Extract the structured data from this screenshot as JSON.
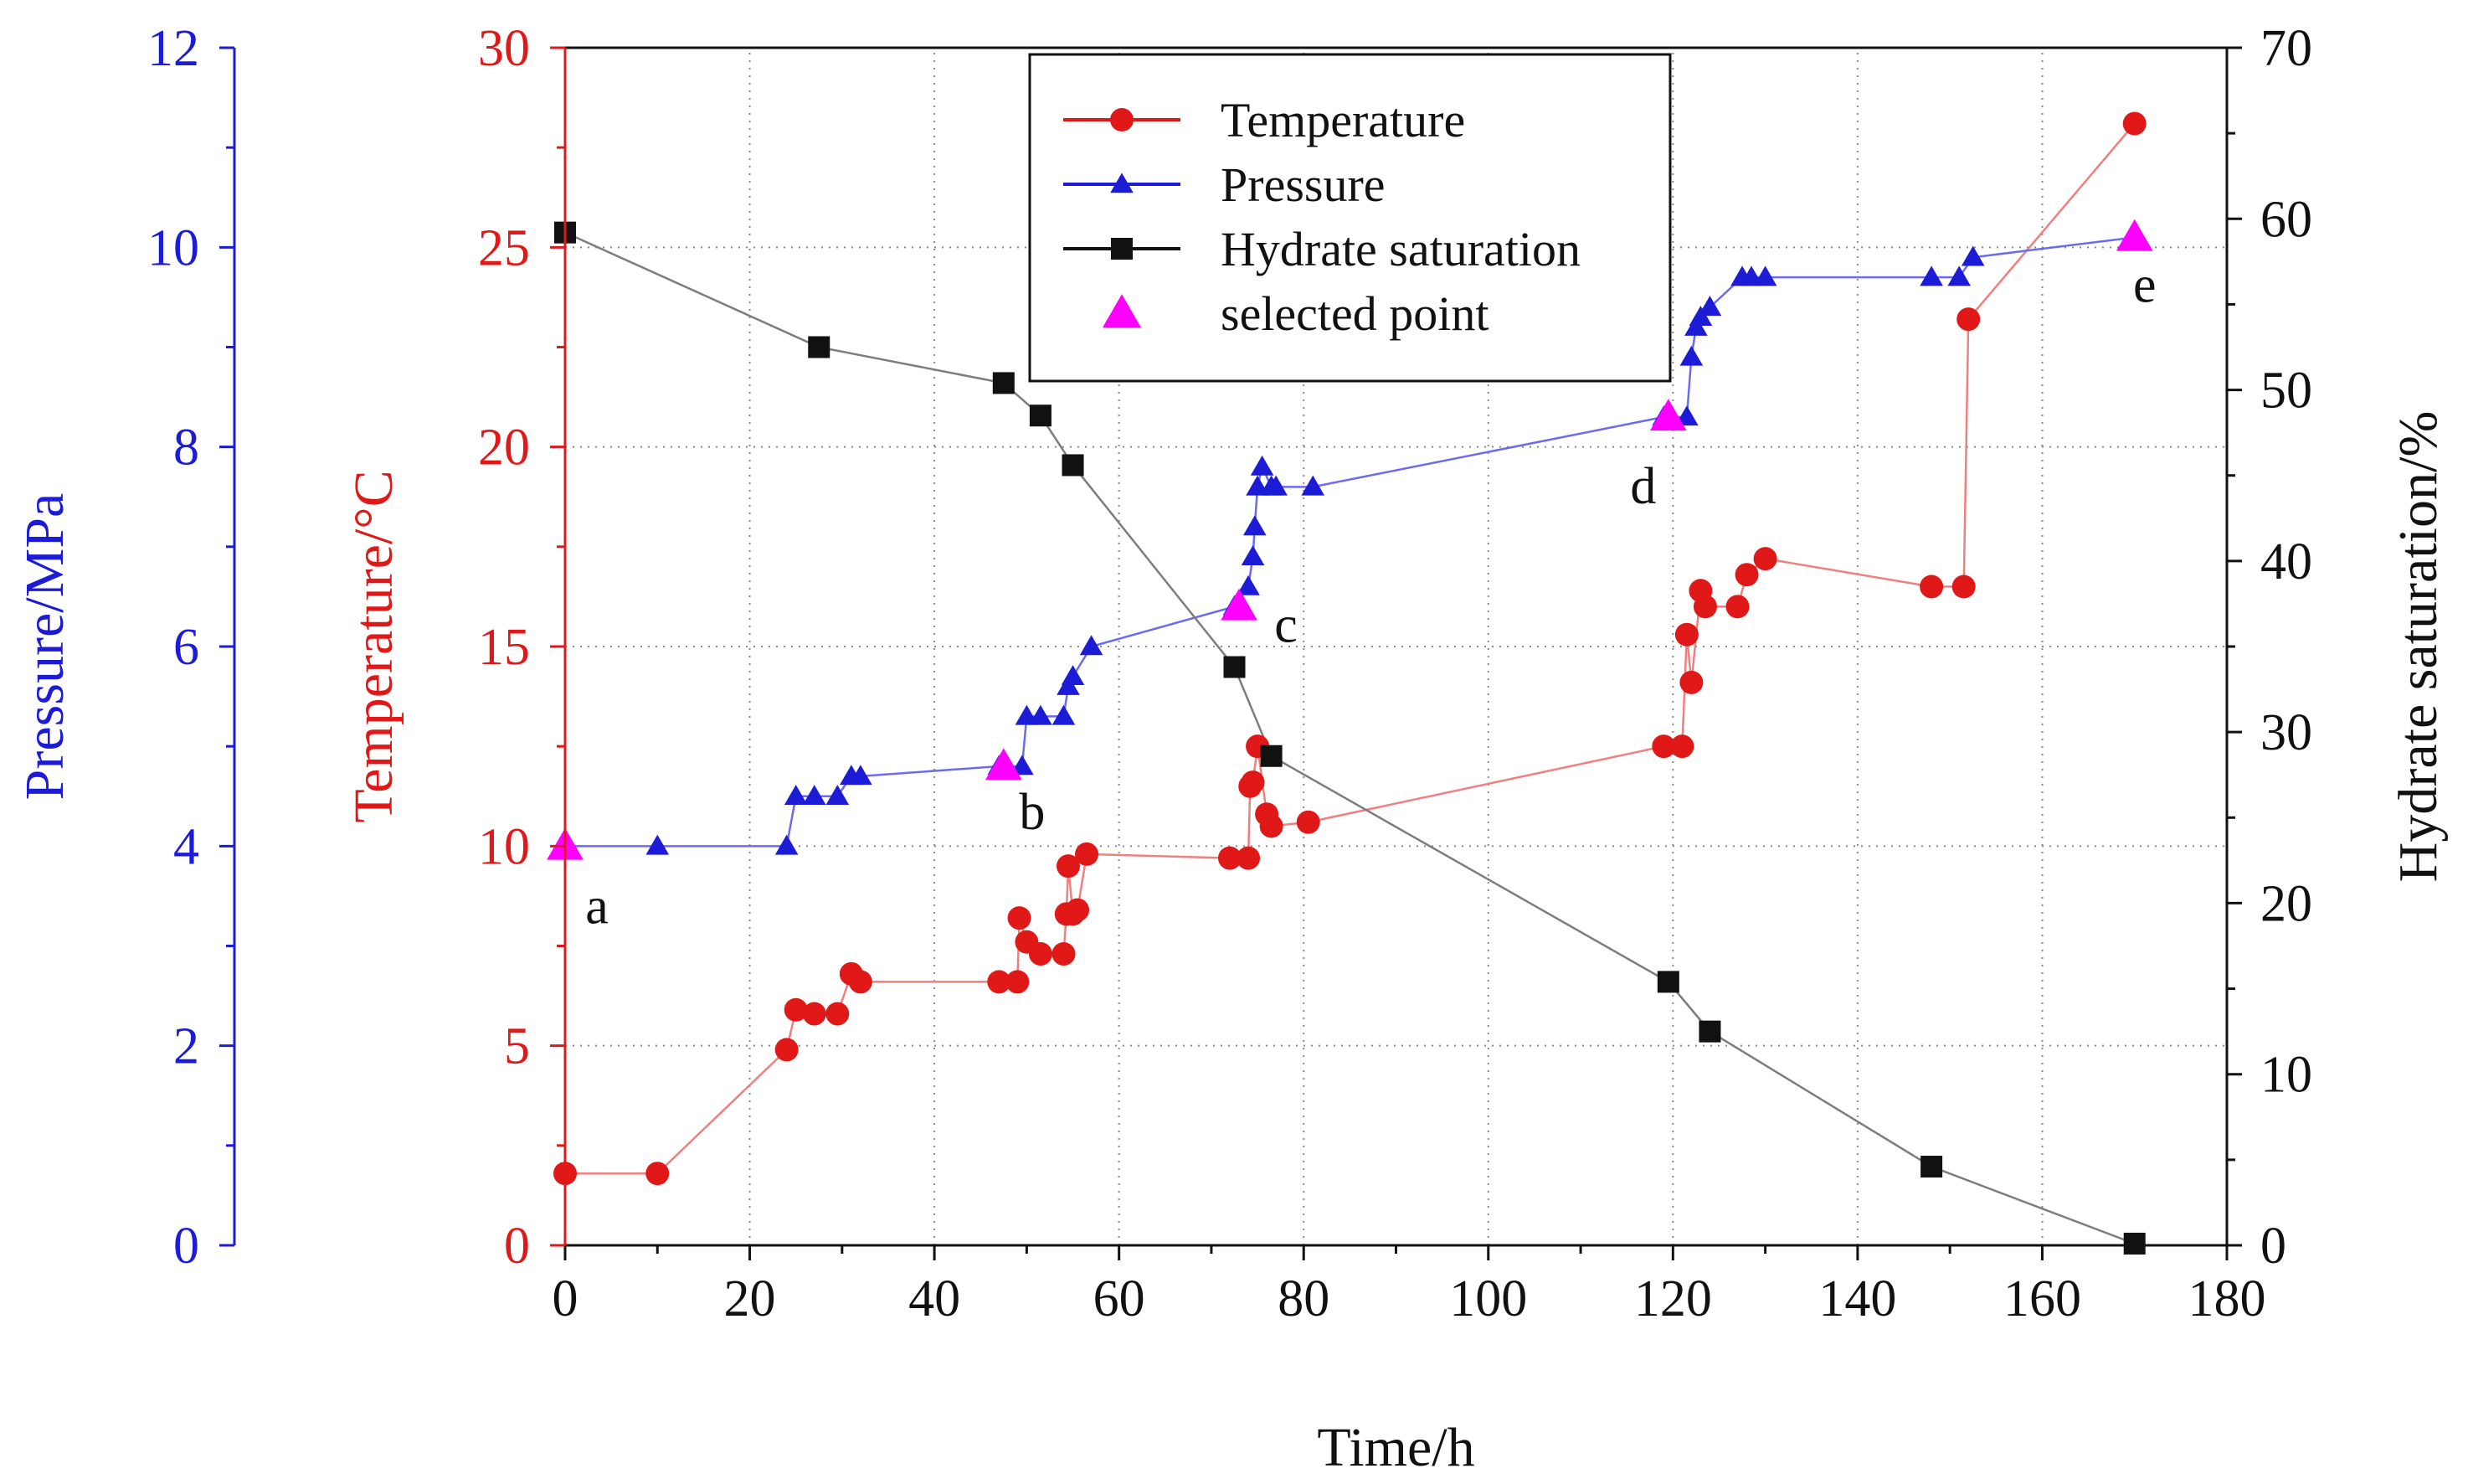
{
  "chart_data": {
    "type": "line",
    "xlabel": "Time/h",
    "xlim": [
      0,
      180
    ],
    "x_ticks": [
      0,
      20,
      40,
      60,
      80,
      100,
      120,
      140,
      160,
      180
    ],
    "grid": true,
    "legend_position": "top-center",
    "axes": {
      "pressure": {
        "label": "Pressure/MPa",
        "lim": [
          0,
          12
        ],
        "ticks": [
          0,
          2,
          4,
          6,
          8,
          10,
          12
        ],
        "color": "#1c1cd6",
        "side": "far-left"
      },
      "temperature": {
        "label": "Temperature/°C",
        "lim": [
          0,
          30
        ],
        "ticks": [
          0,
          5,
          10,
          15,
          20,
          25,
          30
        ],
        "color": "#e01818",
        "side": "left"
      },
      "saturation": {
        "label": "Hydrate saturation/%",
        "lim": [
          0,
          70
        ],
        "ticks": [
          0,
          10,
          20,
          30,
          40,
          50,
          60,
          70
        ],
        "color": "#111111",
        "side": "right"
      }
    },
    "series": [
      {
        "name": "Temperature",
        "axis": "temperature",
        "marker": "circle",
        "color": "#e01818",
        "line_color": "#f08080",
        "points": [
          [
            0,
            1.8
          ],
          [
            10,
            1.8
          ],
          [
            24,
            4.9
          ],
          [
            25,
            5.9
          ],
          [
            27,
            5.8
          ],
          [
            29.5,
            5.8
          ],
          [
            31,
            6.8
          ],
          [
            32,
            6.6
          ],
          [
            47,
            6.6
          ],
          [
            49,
            6.6
          ],
          [
            49.2,
            8.2
          ],
          [
            50,
            7.6
          ],
          [
            51.5,
            7.3
          ],
          [
            54,
            7.3
          ],
          [
            54.3,
            8.3
          ],
          [
            54.5,
            9.5
          ],
          [
            55,
            8.3
          ],
          [
            55.5,
            8.4
          ],
          [
            56.5,
            9.8
          ],
          [
            72,
            9.7
          ],
          [
            74,
            9.7
          ],
          [
            74.2,
            11.5
          ],
          [
            74.5,
            11.6
          ],
          [
            75,
            12.5
          ],
          [
            76,
            10.8
          ],
          [
            76.5,
            10.5
          ],
          [
            80.5,
            10.6
          ],
          [
            119,
            12.5
          ],
          [
            121,
            12.5
          ],
          [
            121.5,
            15.3
          ],
          [
            122,
            14.1
          ],
          [
            123,
            16.4
          ],
          [
            123.5,
            16.0
          ],
          [
            127,
            16.0
          ],
          [
            128,
            16.8
          ],
          [
            130,
            17.2
          ],
          [
            148,
            16.5
          ],
          [
            151.5,
            16.5
          ],
          [
            152,
            23.2
          ],
          [
            170,
            28.1
          ]
        ]
      },
      {
        "name": "Pressure",
        "axis": "pressure",
        "marker": "triangle",
        "color": "#1c1cd6",
        "line_color": "#6b6bef",
        "points": [
          [
            0,
            4.0
          ],
          [
            10,
            4.0
          ],
          [
            24,
            4.0
          ],
          [
            25,
            4.5
          ],
          [
            27,
            4.5
          ],
          [
            29.5,
            4.5
          ],
          [
            31,
            4.7
          ],
          [
            32,
            4.7
          ],
          [
            47,
            4.8
          ],
          [
            49.5,
            4.8
          ],
          [
            50,
            5.3
          ],
          [
            51.5,
            5.3
          ],
          [
            54,
            5.3
          ],
          [
            54.5,
            5.6
          ],
          [
            55,
            5.7
          ],
          [
            57,
            6.0
          ],
          [
            72.5,
            6.4
          ],
          [
            74,
            6.6
          ],
          [
            74.5,
            6.9
          ],
          [
            74.7,
            7.2
          ],
          [
            75,
            7.6
          ],
          [
            75.5,
            7.8
          ],
          [
            76.5,
            7.6
          ],
          [
            77,
            7.6
          ],
          [
            81,
            7.6
          ],
          [
            119,
            8.3
          ],
          [
            121.5,
            8.3
          ],
          [
            122,
            8.9
          ],
          [
            122.5,
            9.2
          ],
          [
            123,
            9.3
          ],
          [
            124,
            9.4
          ],
          [
            127.5,
            9.7
          ],
          [
            128.5,
            9.7
          ],
          [
            130,
            9.7
          ],
          [
            148,
            9.7
          ],
          [
            151,
            9.7
          ],
          [
            152.5,
            9.9
          ],
          [
            170,
            10.1
          ]
        ]
      },
      {
        "name": "Hydrate saturation",
        "axis": "saturation",
        "marker": "square",
        "color": "#111111",
        "line_color": "#7d7d7d",
        "points": [
          [
            0,
            59.2
          ],
          [
            27.5,
            52.5
          ],
          [
            47.5,
            50.4
          ],
          [
            51.5,
            48.5
          ],
          [
            55,
            45.6
          ],
          [
            72.5,
            33.8
          ],
          [
            76.5,
            28.6
          ],
          [
            119.5,
            15.4
          ],
          [
            124,
            12.5
          ],
          [
            148,
            4.6
          ],
          [
            170,
            0.1
          ]
        ]
      },
      {
        "name": "selected point",
        "axis": "pressure",
        "marker": "triangle",
        "color": "#ff00ff",
        "line": false,
        "points": [
          [
            0,
            4.0
          ],
          [
            47.5,
            4.8
          ],
          [
            73,
            6.4
          ],
          [
            119.5,
            8.3
          ],
          [
            170,
            10.1
          ]
        ]
      }
    ],
    "annotations": [
      {
        "text": "a",
        "x": 0,
        "y_pressure": 4.0
      },
      {
        "text": "b",
        "x": 47.5,
        "y_pressure": 4.8
      },
      {
        "text": "c",
        "x": 73,
        "y_pressure": 6.4
      },
      {
        "text": "d",
        "x": 119.5,
        "y_pressure": 8.3
      },
      {
        "text": "e",
        "x": 170,
        "y_pressure": 10.1
      }
    ]
  }
}
